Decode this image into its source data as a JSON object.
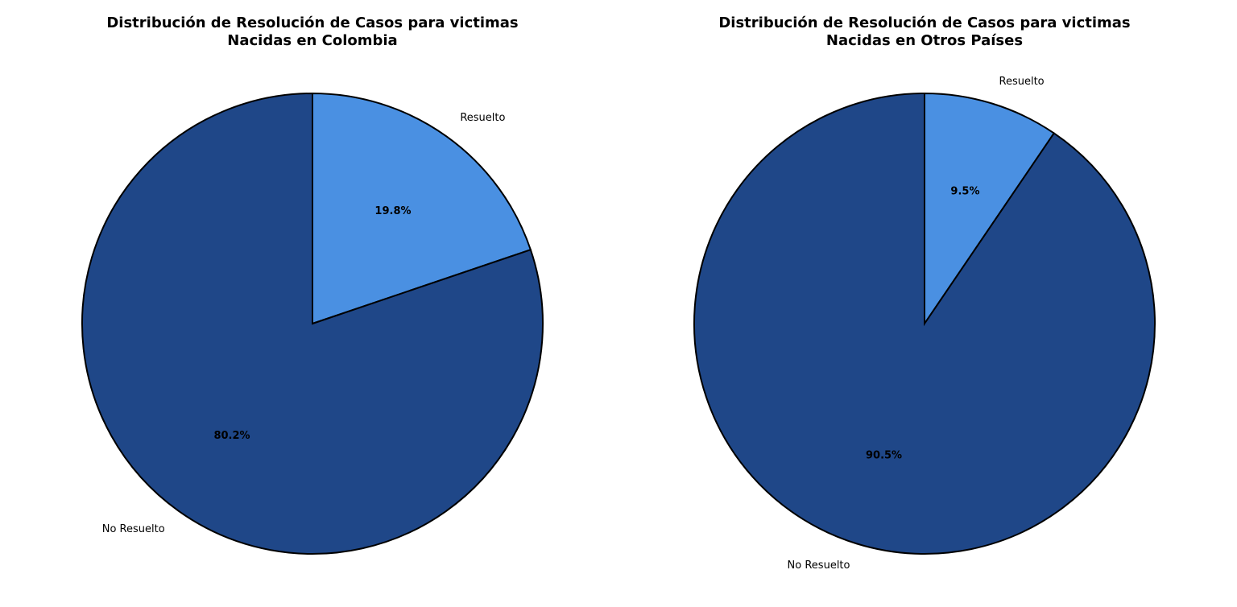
{
  "chart_data": [
    {
      "type": "pie",
      "title_lines": [
        "Distribución de Resolución de Casos para victimas",
        "Nacidas en Colombia"
      ],
      "slices": [
        {
          "label": "Resuelto",
          "pct_label": "19.8%",
          "value": 19.8
        },
        {
          "label": "No Resuelto",
          "pct_label": "80.2%",
          "value": 80.2
        }
      ],
      "start_angle_deg": 90,
      "direction": "clockwise"
    },
    {
      "type": "pie",
      "title_lines": [
        "Distribución de Resolución de Casos para victimas",
        "Nacidas en Otros Países"
      ],
      "slices": [
        {
          "label": "Resuelto",
          "pct_label": "9.5%",
          "value": 9.5
        },
        {
          "label": "No Resuelto",
          "pct_label": "90.5%",
          "value": 90.5
        }
      ],
      "start_angle_deg": 90,
      "direction": "clockwise"
    }
  ],
  "colors": {
    "resuelto": "#4a90e2",
    "no_resuelto": "#1f4788",
    "edge": "#000000"
  }
}
